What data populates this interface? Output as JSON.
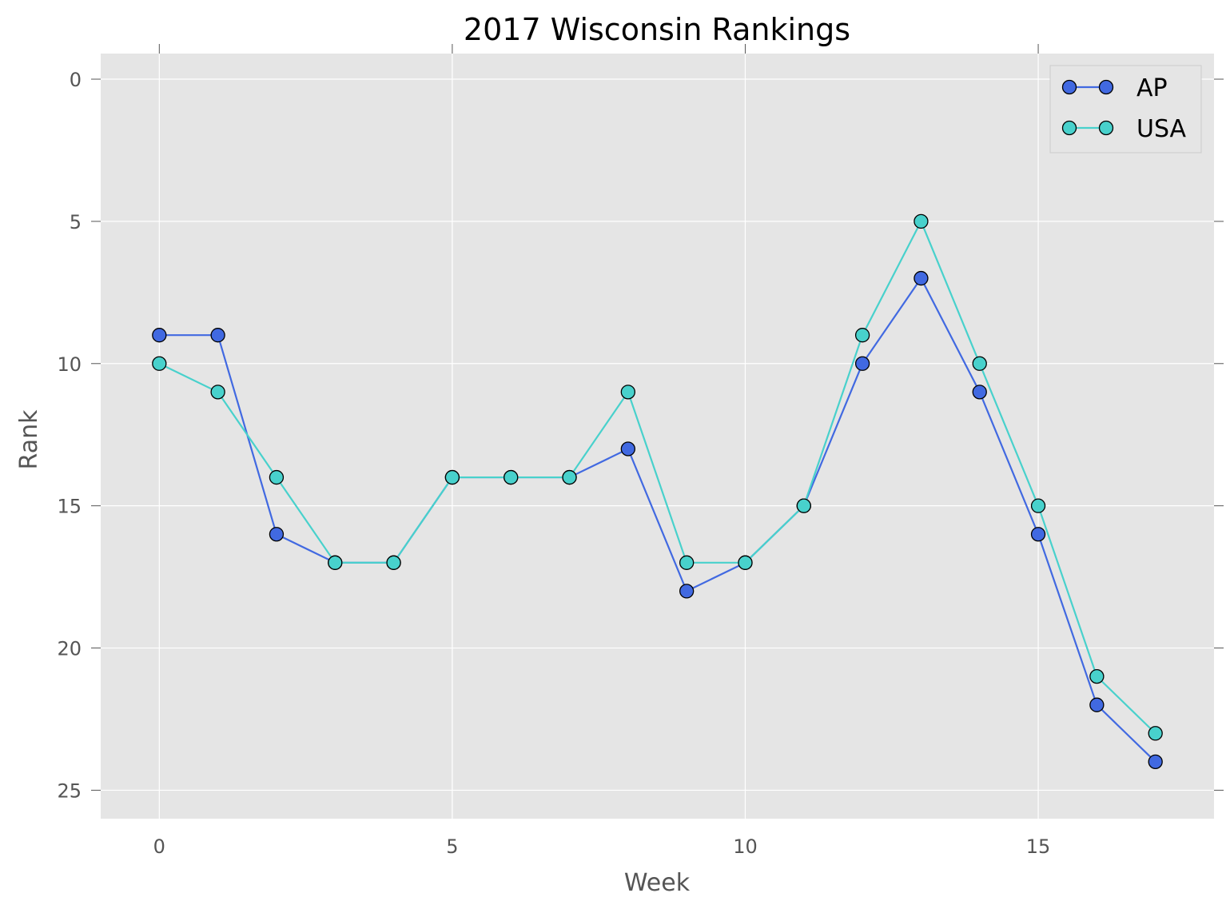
{
  "chart_data": {
    "type": "line",
    "title": "2017 Wisconsin Rankings",
    "xlabel": "Week",
    "ylabel": "Rank",
    "xlim": [
      -1,
      18
    ],
    "ylim": [
      0,
      26
    ],
    "y_inverted": true,
    "xticks": [
      0,
      5,
      10,
      15
    ],
    "yticks": [
      0,
      5,
      10,
      15,
      20,
      25
    ],
    "grid": true,
    "legend_position": "top-right",
    "x": [
      0,
      1,
      2,
      3,
      4,
      5,
      6,
      7,
      8,
      9,
      10,
      11,
      12,
      13,
      14,
      15,
      16,
      17
    ],
    "series": [
      {
        "name": "AP",
        "color": "#4169E1",
        "values": [
          9,
          9,
          16,
          17,
          17,
          14,
          14,
          14,
          13,
          18,
          17,
          15,
          10,
          7,
          11,
          16,
          22,
          24
        ]
      },
      {
        "name": "USA",
        "color": "#48D1CC",
        "values": [
          10,
          11,
          14,
          17,
          17,
          14,
          14,
          14,
          11,
          17,
          17,
          15,
          9,
          5,
          10,
          15,
          21,
          23
        ]
      }
    ]
  }
}
